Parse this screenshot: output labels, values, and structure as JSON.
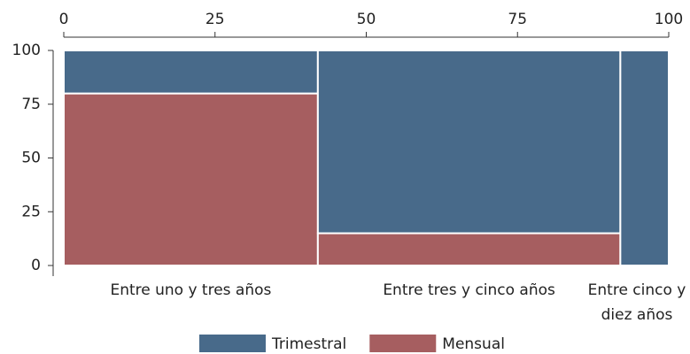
{
  "chart_data": {
    "type": "mosaic",
    "categories": [
      "Entre uno y tres años",
      "Entre tres y cinco años",
      "Entre cinco y diez años"
    ],
    "widths": [
      42,
      50,
      8
    ],
    "series": [
      {
        "name": "Mensual",
        "color": "#a65e60",
        "values": [
          80,
          15,
          0
        ]
      },
      {
        "name": "Trimestral",
        "color": "#486a8a",
        "values": [
          20,
          85,
          100
        ]
      }
    ],
    "xlim": [
      0,
      100
    ],
    "xticks": [
      0,
      25,
      50,
      75,
      100
    ],
    "ylim": [
      0,
      100
    ],
    "yticks": [
      0,
      25,
      50,
      75,
      100
    ],
    "legend": "bottom",
    "legend_order": [
      1,
      0
    ]
  }
}
